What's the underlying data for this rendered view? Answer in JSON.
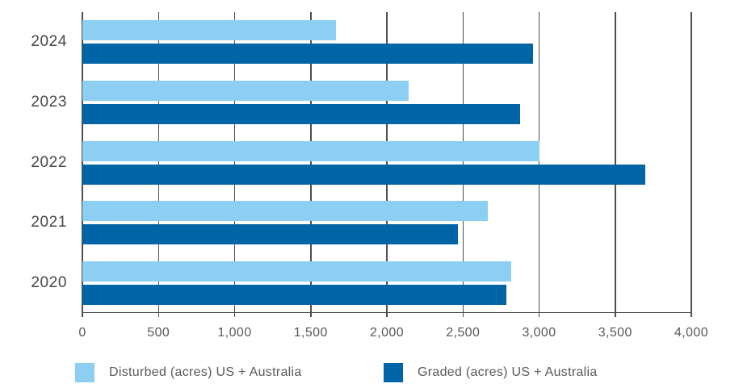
{
  "chart_data": {
    "type": "bar",
    "orientation": "horizontal",
    "title": "",
    "xlabel": "",
    "ylabel": "",
    "categories": [
      "2024",
      "2023",
      "2022",
      "2021",
      "2020"
    ],
    "series": [
      {
        "name": "Disturbed (acres) US + Australia",
        "color": "#8CCFF2",
        "values": [
          1665,
          2145,
          3005,
          2665,
          2815
        ]
      },
      {
        "name": "Graded (acres) US + Australia",
        "color": "#0065A6",
        "values": [
          2960,
          2875,
          3695,
          2465,
          2785
        ]
      }
    ],
    "xlim": [
      0,
      4000
    ],
    "x_ticks": [
      0,
      500,
      1000,
      1500,
      2000,
      2500,
      3000,
      3500,
      4000
    ],
    "x_tick_labels": [
      "0",
      "500",
      "1,000",
      "1,500",
      "2,000",
      "2,500",
      "3,000",
      "3,500",
      "4,000"
    ],
    "grid": "vertical-only",
    "legend_position": "bottom"
  },
  "colors": {
    "disturbed": "#8CCFF2",
    "graded": "#0065A6",
    "gridline": "#4D4D4D",
    "axis_text": "#595959",
    "year_text": "#474747",
    "background": "#FFFFFF"
  }
}
